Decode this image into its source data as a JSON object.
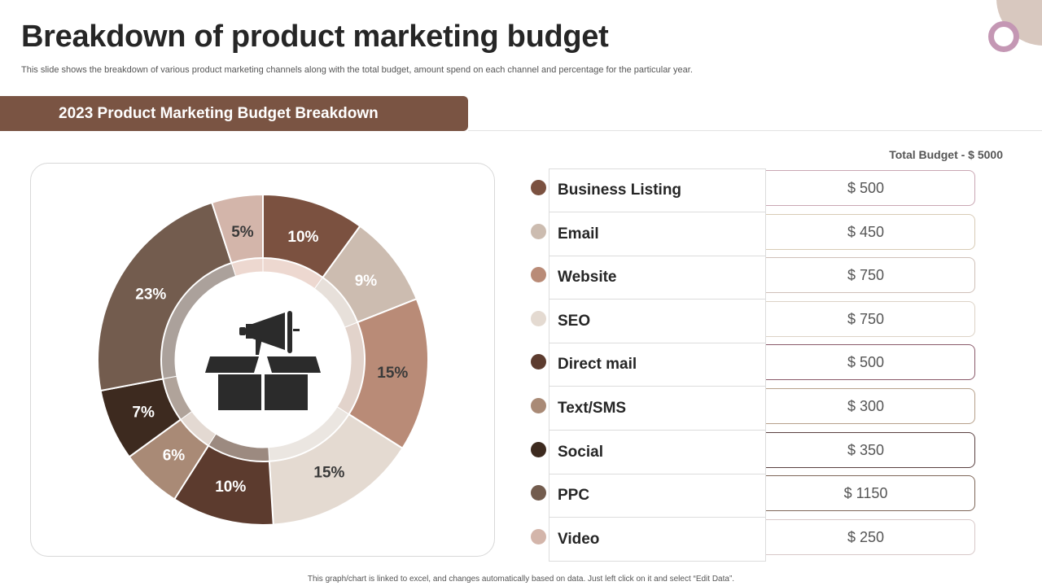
{
  "header": {
    "title": "Breakdown of product marketing budget",
    "subtitle": "This slide shows the breakdown of various product marketing channels along with the total budget, amount spend on each channel and percentage for the particular year."
  },
  "banner": {
    "label": "2023 Product Marketing Budget Breakdown"
  },
  "total_budget": "Total Budget - $ 5000",
  "footnote": "This graph/chart is linked to excel, and changes automatically based on data. Just left click on it and select “Edit Data”.",
  "center_icon": "megaphone-box-icon",
  "chart_data": {
    "type": "pie",
    "variant": "donut",
    "categories": [
      "Business Listing",
      "Email",
      "Website",
      "SEO",
      "Direct mail",
      "Text/SMS",
      "Social",
      "PPC",
      "Video"
    ],
    "values": [
      10,
      9,
      15,
      15,
      10,
      6,
      7,
      23,
      5
    ],
    "labels": [
      "10%",
      "9%",
      "15%",
      "15%",
      "10%",
      "6%",
      "7%",
      "23%",
      "5%"
    ],
    "amounts": [
      "$ 500",
      "$ 450",
      "$ 750",
      "$ 750",
      "$ 500",
      "$ 300",
      "$ 350",
      "$ 1150",
      "$ 250"
    ],
    "colors": [
      "#7b5140",
      "#ccbcb0",
      "#b98b77",
      "#e4dad1",
      "#5c3b2e",
      "#a98a76",
      "#3d2a1f",
      "#735c4e",
      "#d3b5aa"
    ],
    "label_colors": [
      "#ffffff",
      "#ffffff",
      "#3a3a3a",
      "#3a3a3a",
      "#ffffff",
      "#ffffff",
      "#ffffff",
      "#ffffff",
      "#3a3a3a"
    ],
    "inner_ring_colors": [
      "#edd8d0",
      "#e7e0da",
      "#e2d3cb",
      "#ebe6e1",
      "#9c8a80",
      "#e3d9d2",
      "#b0a39a",
      "#aba19b",
      "#edd8d0"
    ]
  }
}
